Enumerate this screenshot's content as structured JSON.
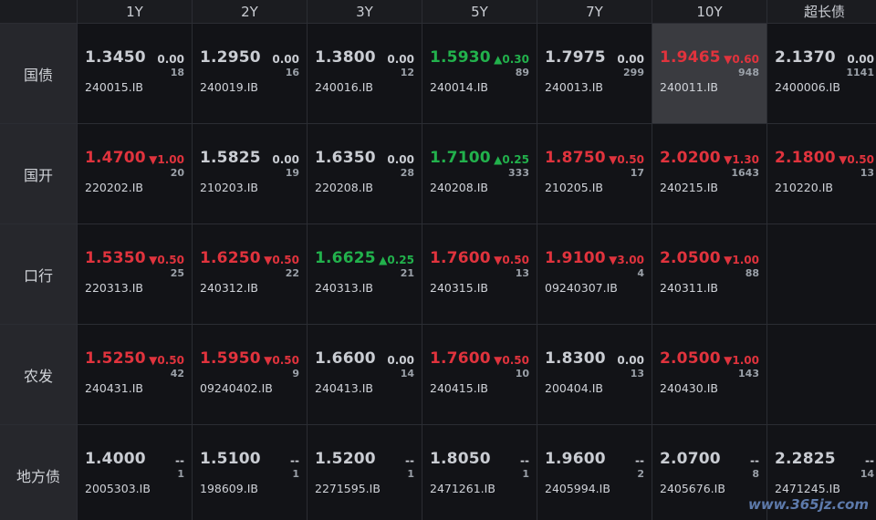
{
  "columns": [
    "1Y",
    "2Y",
    "3Y",
    "5Y",
    "7Y",
    "10Y",
    "超长债"
  ],
  "rows": [
    {
      "label": "国债",
      "cells": [
        {
          "yield": "1.3450",
          "change": "0.00",
          "dir": "flat",
          "count": "18",
          "code": "240015.IB"
        },
        {
          "yield": "1.2950",
          "change": "0.00",
          "dir": "flat",
          "count": "16",
          "code": "240019.IB"
        },
        {
          "yield": "1.3800",
          "change": "0.00",
          "dir": "flat",
          "count": "12",
          "code": "240016.IB"
        },
        {
          "yield": "1.5930",
          "change": "▲0.30",
          "dir": "up",
          "count": "89",
          "code": "240014.IB"
        },
        {
          "yield": "1.7975",
          "change": "0.00",
          "dir": "flat",
          "count": "299",
          "code": "240013.IB"
        },
        {
          "yield": "1.9465",
          "change": "▼0.60",
          "dir": "down",
          "count": "948",
          "code": "240011.IB",
          "highlight": true
        },
        {
          "yield": "2.1370",
          "change": "0.00",
          "dir": "flat",
          "count": "1141",
          "code": "2400006.IB"
        }
      ]
    },
    {
      "label": "国开",
      "cells": [
        {
          "yield": "1.4700",
          "change": "▼1.00",
          "dir": "down",
          "count": "20",
          "code": "220202.IB"
        },
        {
          "yield": "1.5825",
          "change": "0.00",
          "dir": "flat",
          "count": "19",
          "code": "210203.IB"
        },
        {
          "yield": "1.6350",
          "change": "0.00",
          "dir": "flat",
          "count": "28",
          "code": "220208.IB"
        },
        {
          "yield": "1.7100",
          "change": "▲0.25",
          "dir": "up",
          "count": "333",
          "code": "240208.IB"
        },
        {
          "yield": "1.8750",
          "change": "▼0.50",
          "dir": "down",
          "count": "17",
          "code": "210205.IB"
        },
        {
          "yield": "2.0200",
          "change": "▼1.30",
          "dir": "down",
          "count": "1643",
          "code": "240215.IB"
        },
        {
          "yield": "2.1800",
          "change": "▼0.50",
          "dir": "down",
          "count": "13",
          "code": "210220.IB"
        }
      ]
    },
    {
      "label": "口行",
      "cells": [
        {
          "yield": "1.5350",
          "change": "▼0.50",
          "dir": "down",
          "count": "25",
          "code": "220313.IB"
        },
        {
          "yield": "1.6250",
          "change": "▼0.50",
          "dir": "down",
          "count": "22",
          "code": "240312.IB"
        },
        {
          "yield": "1.6625",
          "change": "▲0.25",
          "dir": "up",
          "count": "21",
          "code": "240313.IB"
        },
        {
          "yield": "1.7600",
          "change": "▼0.50",
          "dir": "down",
          "count": "13",
          "code": "240315.IB"
        },
        {
          "yield": "1.9100",
          "change": "▼3.00",
          "dir": "down",
          "count": "4",
          "code": "09240307.IB"
        },
        {
          "yield": "2.0500",
          "change": "▼1.00",
          "dir": "down",
          "count": "88",
          "code": "240311.IB"
        },
        null
      ]
    },
    {
      "label": "农发",
      "cells": [
        {
          "yield": "1.5250",
          "change": "▼0.50",
          "dir": "down",
          "count": "42",
          "code": "240431.IB"
        },
        {
          "yield": "1.5950",
          "change": "▼0.50",
          "dir": "down",
          "count": "9",
          "code": "09240402.IB"
        },
        {
          "yield": "1.6600",
          "change": "0.00",
          "dir": "flat",
          "count": "14",
          "code": "240413.IB"
        },
        {
          "yield": "1.7600",
          "change": "▼0.50",
          "dir": "down",
          "count": "10",
          "code": "240415.IB"
        },
        {
          "yield": "1.8300",
          "change": "0.00",
          "dir": "flat",
          "count": "13",
          "code": "200404.IB"
        },
        {
          "yield": "2.0500",
          "change": "▼1.00",
          "dir": "down",
          "count": "143",
          "code": "240430.IB"
        },
        null
      ]
    },
    {
      "label": "地方债",
      "cells": [
        {
          "yield": "1.4000",
          "change": "--",
          "dir": "flat",
          "count": "1",
          "code": "2005303.IB"
        },
        {
          "yield": "1.5100",
          "change": "--",
          "dir": "flat",
          "count": "1",
          "code": "198609.IB"
        },
        {
          "yield": "1.5200",
          "change": "--",
          "dir": "flat",
          "count": "1",
          "code": "2271595.IB"
        },
        {
          "yield": "1.8050",
          "change": "--",
          "dir": "flat",
          "count": "1",
          "code": "2471261.IB"
        },
        {
          "yield": "1.9600",
          "change": "--",
          "dir": "flat",
          "count": "2",
          "code": "2405994.IB"
        },
        {
          "yield": "2.0700",
          "change": "--",
          "dir": "flat",
          "count": "8",
          "code": "2405676.IB"
        },
        {
          "yield": "2.2825",
          "change": "--",
          "dir": "flat",
          "count": "14",
          "code": "2471245.IB"
        }
      ]
    }
  ],
  "colors": {
    "up": "#22b14c",
    "down": "#e0333d",
    "flat": "#c9ccd2"
  },
  "watermark": "www.365jz.com"
}
